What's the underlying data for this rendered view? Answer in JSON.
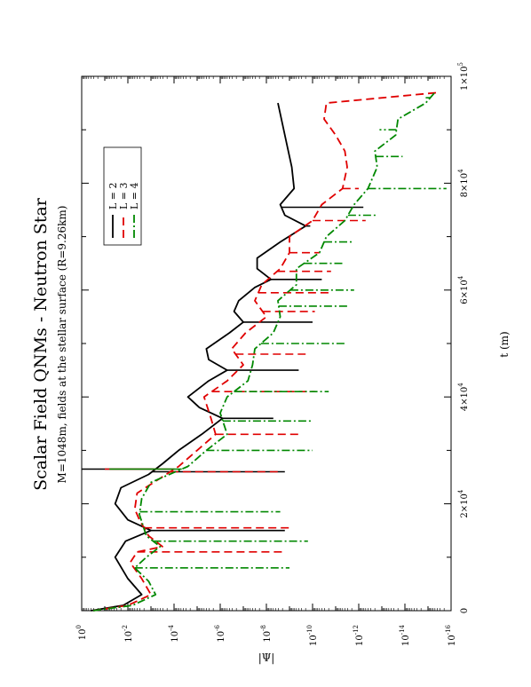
{
  "chart_data": {
    "type": "line",
    "orientation": "rotated-90-ccw",
    "title": "Scalar Field QNMs - Neutron Star",
    "subtitle": "M=1048m, fields at the stellar surface (R=9.26km)",
    "xlabel": "t (m)",
    "ylabel": "|Ψ|",
    "xscale": "linear",
    "yscale": "log",
    "xlim": [
      0,
      100000
    ],
    "ylim_log10": [
      -16,
      0
    ],
    "x_ticks": [
      {
        "label": "0"
      },
      {
        "label": "2×10",
        "exp": "4"
      },
      {
        "label": "4×10",
        "exp": "4"
      },
      {
        "label": "6×10",
        "exp": "4"
      },
      {
        "label": "8×10",
        "exp": "4"
      },
      {
        "label": "1×10",
        "exp": "5"
      }
    ],
    "y_ticks": [
      {
        "label": "10",
        "exp": "0"
      },
      {
        "label": "10",
        "exp": "-2"
      },
      {
        "label": "10",
        "exp": "-4"
      },
      {
        "label": "10",
        "exp": "-6"
      },
      {
        "label": "10",
        "exp": "-8"
      },
      {
        "label": "10",
        "exp": "-10"
      },
      {
        "label": "10",
        "exp": "-12"
      },
      {
        "label": "10",
        "exp": "-14"
      },
      {
        "label": "10",
        "exp": "-16"
      }
    ],
    "legend_position": "upper-left (rotated view)",
    "series": [
      {
        "name": "L = 2",
        "color": "#000000",
        "dash": "solid",
        "envelope": [
          [
            0,
            -0.4
          ],
          [
            1000,
            -1.8
          ],
          [
            3000,
            -2.6
          ],
          [
            6000,
            -2.0
          ],
          [
            10000,
            -1.45
          ],
          [
            13000,
            -1.9
          ],
          [
            15000,
            -3.0
          ],
          [
            17000,
            -2.0
          ],
          [
            20000,
            -1.45
          ],
          [
            23000,
            -1.7
          ],
          [
            25500,
            -2.9
          ],
          [
            27500,
            -3.5
          ],
          [
            30000,
            -4.2
          ],
          [
            33000,
            -5.2
          ],
          [
            36000,
            -6.1
          ],
          [
            38000,
            -5.1
          ],
          [
            40000,
            -4.6
          ],
          [
            43000,
            -5.5
          ],
          [
            45000,
            -6.3
          ],
          [
            47000,
            -5.5
          ],
          [
            49000,
            -5.4
          ],
          [
            52000,
            -6.4
          ],
          [
            54000,
            -7.0
          ],
          [
            56000,
            -6.6
          ],
          [
            58000,
            -6.8
          ],
          [
            60500,
            -7.5
          ],
          [
            62000,
            -8.2
          ],
          [
            64000,
            -7.6
          ],
          [
            66000,
            -7.6
          ],
          [
            69000,
            -8.6
          ],
          [
            72000,
            -9.7
          ],
          [
            74000,
            -8.8
          ],
          [
            76000,
            -8.6
          ],
          [
            79000,
            -9.2
          ],
          [
            83000,
            -9.1
          ],
          [
            87000,
            -8.9
          ],
          [
            91000,
            -8.7
          ],
          [
            95000,
            -8.5
          ]
        ],
        "dips": [
          [
            15000,
            -8.8
          ],
          [
            26000,
            -8.8
          ],
          [
            36000,
            -8.3
          ],
          [
            45000,
            -9.4
          ],
          [
            54000,
            -10.0
          ],
          [
            62000,
            -10.4
          ],
          [
            72000,
            -9.9
          ],
          [
            75500,
            -12.2
          ]
        ],
        "spike": [
          26500,
          0.2
        ]
      },
      {
        "name": "L = 3",
        "color": "#e00000",
        "dash": "dashed",
        "envelope": [
          [
            0,
            -0.5
          ],
          [
            1000,
            -2.0
          ],
          [
            3000,
            -3.0
          ],
          [
            6000,
            -2.6
          ],
          [
            9000,
            -2.1
          ],
          [
            11000,
            -2.4
          ],
          [
            12000,
            -3.5
          ],
          [
            14000,
            -2.9
          ],
          [
            17000,
            -2.5
          ],
          [
            19000,
            -2.3
          ],
          [
            22000,
            -2.4
          ],
          [
            24500,
            -3.3
          ],
          [
            27000,
            -4.2
          ],
          [
            30000,
            -5.0
          ],
          [
            33000,
            -5.8
          ],
          [
            36000,
            -5.6
          ],
          [
            40000,
            -5.3
          ],
          [
            43000,
            -6.3
          ],
          [
            46000,
            -7.0
          ],
          [
            49000,
            -6.5
          ],
          [
            52000,
            -7.1
          ],
          [
            55000,
            -8.0
          ],
          [
            58000,
            -7.5
          ],
          [
            61000,
            -7.8
          ],
          [
            64000,
            -8.6
          ],
          [
            67000,
            -9.0
          ],
          [
            70000,
            -9.0
          ],
          [
            73000,
            -10.0
          ],
          [
            76000,
            -10.4
          ],
          [
            79000,
            -11.3
          ],
          [
            83000,
            -11.5
          ],
          [
            86000,
            -11.4
          ],
          [
            89000,
            -11.0
          ],
          [
            92000,
            -10.5
          ],
          [
            95000,
            -10.6
          ],
          [
            97000,
            -15.5
          ]
        ],
        "dips": [
          [
            11000,
            -8.8
          ],
          [
            15500,
            -9.0
          ],
          [
            26000,
            -8.6
          ],
          [
            33000,
            -9.5
          ],
          [
            41000,
            -10.1
          ],
          [
            48000,
            -9.7
          ],
          [
            56000,
            -10.1
          ],
          [
            59500,
            -10.7
          ],
          [
            63500,
            -10.8
          ],
          [
            67000,
            -10.3
          ],
          [
            73000,
            -12.3
          ],
          [
            79000,
            -12.0
          ]
        ],
        "spike": [
          26500,
          -1.0
        ]
      },
      {
        "name": "L = 4",
        "color": "#008800",
        "dash": "dashdot",
        "envelope": [
          [
            0,
            -0.5
          ],
          [
            1000,
            -2.2
          ],
          [
            3000,
            -3.2
          ],
          [
            5500,
            -2.9
          ],
          [
            8000,
            -2.3
          ],
          [
            10000,
            -2.8
          ],
          [
            12000,
            -3.4
          ],
          [
            14000,
            -2.8
          ],
          [
            18000,
            -2.5
          ],
          [
            21000,
            -2.6
          ],
          [
            24000,
            -3.0
          ],
          [
            27000,
            -4.6
          ],
          [
            30000,
            -5.4
          ],
          [
            33000,
            -6.3
          ],
          [
            37000,
            -6.0
          ],
          [
            40000,
            -6.3
          ],
          [
            43000,
            -7.2
          ],
          [
            46000,
            -7.4
          ],
          [
            49000,
            -7.5
          ],
          [
            52000,
            -8.3
          ],
          [
            55000,
            -8.6
          ],
          [
            58000,
            -8.5
          ],
          [
            61000,
            -9.3
          ],
          [
            64000,
            -9.3
          ],
          [
            67000,
            -10.3
          ],
          [
            70000,
            -10.6
          ],
          [
            73000,
            -11.4
          ],
          [
            76000,
            -11.8
          ],
          [
            79000,
            -12.4
          ],
          [
            83000,
            -12.8
          ],
          [
            86000,
            -12.7
          ],
          [
            89000,
            -13.6
          ],
          [
            92000,
            -13.7
          ],
          [
            95000,
            -14.9
          ],
          [
            97000,
            -15.3
          ]
        ],
        "dips": [
          [
            8000,
            -9.0
          ],
          [
            13000,
            -9.8
          ],
          [
            18500,
            -8.6
          ],
          [
            30000,
            -10.0
          ],
          [
            35500,
            -10.0
          ],
          [
            41000,
            -10.7
          ],
          [
            50000,
            -11.4
          ],
          [
            57000,
            -11.5
          ],
          [
            60000,
            -11.8
          ],
          [
            65000,
            -11.3
          ],
          [
            69000,
            -11.8
          ],
          [
            74000,
            -12.8
          ],
          [
            79000,
            -15.8
          ],
          [
            85000,
            -13.9
          ],
          [
            90000,
            -12.9
          ],
          [
            96000,
            -14.9
          ]
        ],
        "spike": [
          26500,
          -1.2
        ]
      }
    ]
  }
}
